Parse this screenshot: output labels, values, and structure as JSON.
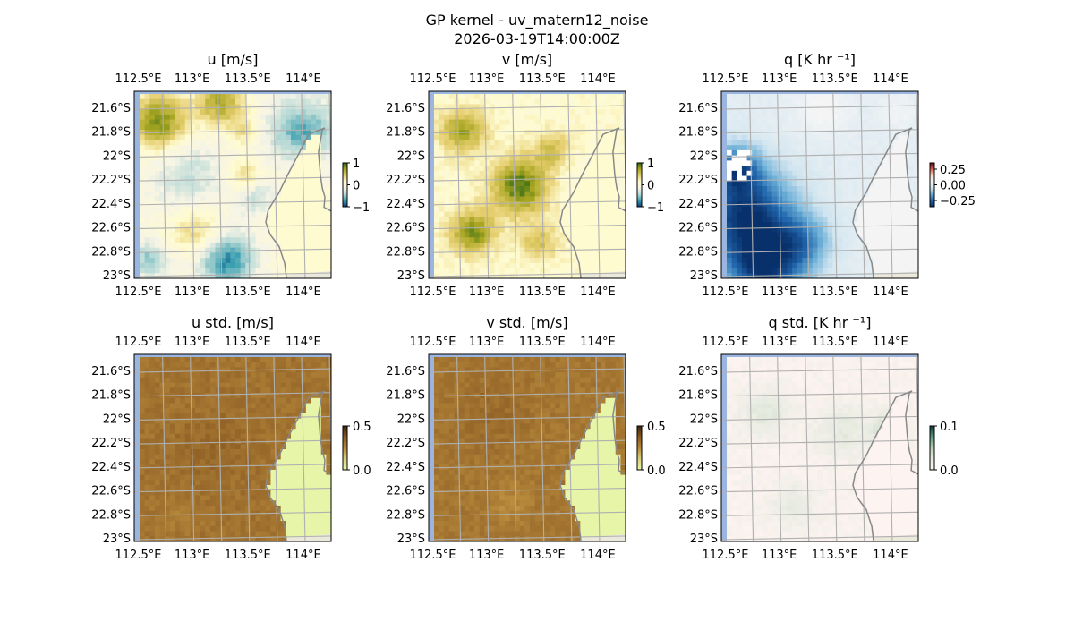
{
  "figure": {
    "title": "GP kernel - uv_matern12_noise",
    "subtitle": "2026-03-19T14:00:00Z"
  },
  "chart_data": [
    {
      "id": "u",
      "type": "heatmap",
      "title": "u [m/s]",
      "colormap": [
        "#0b3c7a",
        "#3a9fb0",
        "#b9dad6",
        "#f6f4e6",
        "#fffbd0",
        "#e6cf70",
        "#a9a622",
        "#2f6a12"
      ],
      "vmin": -1,
      "vmax": 1,
      "colorbar_ticks": [
        "1",
        "0",
        "−1"
      ],
      "colorbar_values": [
        1,
        0,
        -1
      ],
      "land_color": "#fffbd0"
    },
    {
      "id": "v",
      "type": "heatmap",
      "title": "v [m/s]",
      "colormap": [
        "#0b3c7a",
        "#3a9fb0",
        "#b9dad6",
        "#f6f4e6",
        "#fffbd0",
        "#e6cf70",
        "#a9a622",
        "#2f6a12"
      ],
      "vmin": -1,
      "vmax": 1,
      "colorbar_ticks": [
        "1",
        "0",
        "−1"
      ],
      "colorbar_values": [
        1,
        0,
        -1
      ],
      "land_color": "#fffbd0"
    },
    {
      "id": "q",
      "type": "heatmap",
      "title": "q [K hr ⁻¹]",
      "colormap": [
        "#08306b",
        "#2166ac",
        "#6aaed6",
        "#d1e5f0",
        "#f5f5f5",
        "#fddbc7",
        "#d6604d",
        "#67001f"
      ],
      "vmin": -0.35,
      "vmax": 0.35,
      "colorbar_ticks": [
        "0.25",
        "0.00",
        "−0.25"
      ],
      "colorbar_values": [
        0.25,
        0,
        -0.25
      ],
      "land_color": "#f4f4f4"
    },
    {
      "id": "u_std",
      "type": "heatmap",
      "title": "u std. [m/s]",
      "colormap": [
        "#e8f6a8",
        "#d9cf7a",
        "#b78a3c",
        "#8a5a22",
        "#3b2508"
      ],
      "vmin": 0,
      "vmax": 0.5,
      "colorbar_ticks": [
        "0.5",
        "0.0"
      ],
      "colorbar_values": [
        0.5,
        0
      ],
      "land_color": "#e6f5a8"
    },
    {
      "id": "v_std",
      "type": "heatmap",
      "title": "v std. [m/s]",
      "colormap": [
        "#e8f6a8",
        "#d9cf7a",
        "#b78a3c",
        "#8a5a22",
        "#3b2508"
      ],
      "vmin": 0,
      "vmax": 0.5,
      "colorbar_ticks": [
        "0.5",
        "0.0"
      ],
      "colorbar_values": [
        0.5,
        0
      ],
      "land_color": "#e6f5a8"
    },
    {
      "id": "q_std",
      "type": "heatmap",
      "title": "q std. [K hr ⁻¹]",
      "colormap": [
        "#fdf3f0",
        "#e6ebe0",
        "#b8d0b0",
        "#5a9a80",
        "#0c3a3a"
      ],
      "vmin": 0,
      "vmax": 0.1,
      "colorbar_ticks": [
        "0.1",
        "0.0"
      ],
      "colorbar_values": [
        0.1,
        0
      ],
      "land_color": "#fdf3f0"
    }
  ],
  "axes": {
    "x_ticks": [
      "112.5°E",
      "113°E",
      "113.5°E",
      "114°E"
    ],
    "x_tick_values": [
      112.5,
      113,
      113.5,
      114
    ],
    "y_ticks": [
      "21.6°S",
      "21.8°S",
      "22°S",
      "22.2°S",
      "22.4°S",
      "22.6°S",
      "22.8°S",
      "23°S"
    ],
    "y_tick_values": [
      21.6,
      21.8,
      22.0,
      22.2,
      22.4,
      22.6,
      22.8,
      23.0
    ],
    "lon_range": [
      112.48,
      114.25
    ],
    "lat_range": [
      21.465,
      23.03
    ],
    "grid": true,
    "nodata_color": "#9ab6e0",
    "coast_color": "#888888"
  }
}
